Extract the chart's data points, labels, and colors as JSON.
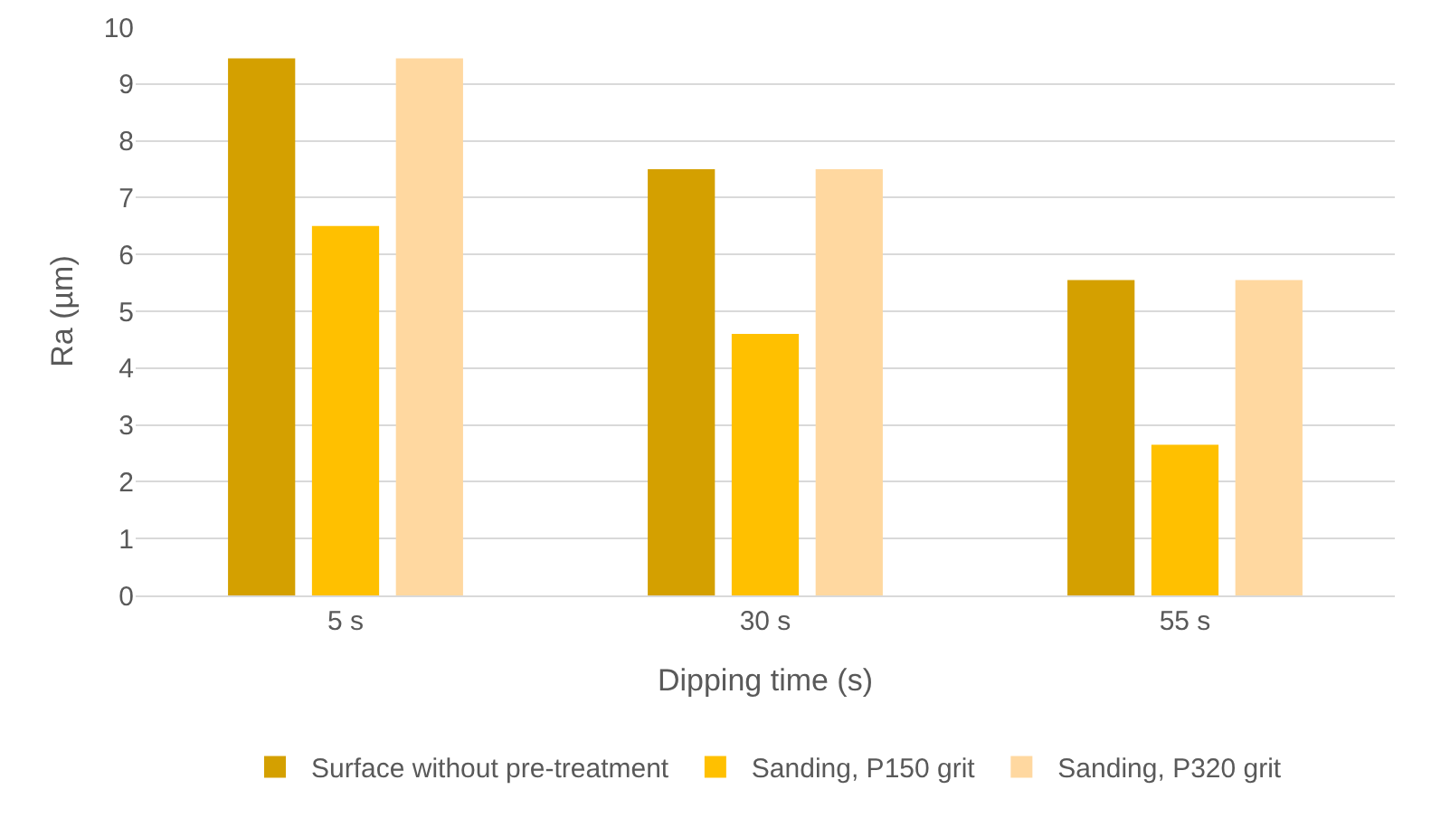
{
  "chart_data": {
    "type": "bar",
    "xlabel": "Dipping time (s)",
    "ylabel": "Ra (µm)",
    "categories": [
      "5 s",
      "30 s",
      "55 s"
    ],
    "series": [
      {
        "name": "Surface without pre-treatment",
        "color": "#d4a000",
        "values": [
          9.45,
          7.5,
          5.55
        ]
      },
      {
        "name": "Sanding, P150 grit",
        "color": "#ffc000",
        "values": [
          6.5,
          4.6,
          2.65
        ]
      },
      {
        "name": "Sanding, P320 grit",
        "color": "#ffd8a0",
        "values": [
          9.45,
          7.5,
          5.55
        ]
      }
    ],
    "ylim": [
      0,
      10
    ],
    "yticks": [
      0,
      1,
      2,
      3,
      4,
      5,
      6,
      7,
      8,
      9,
      10
    ],
    "grid": "y",
    "legend": "bottom"
  }
}
